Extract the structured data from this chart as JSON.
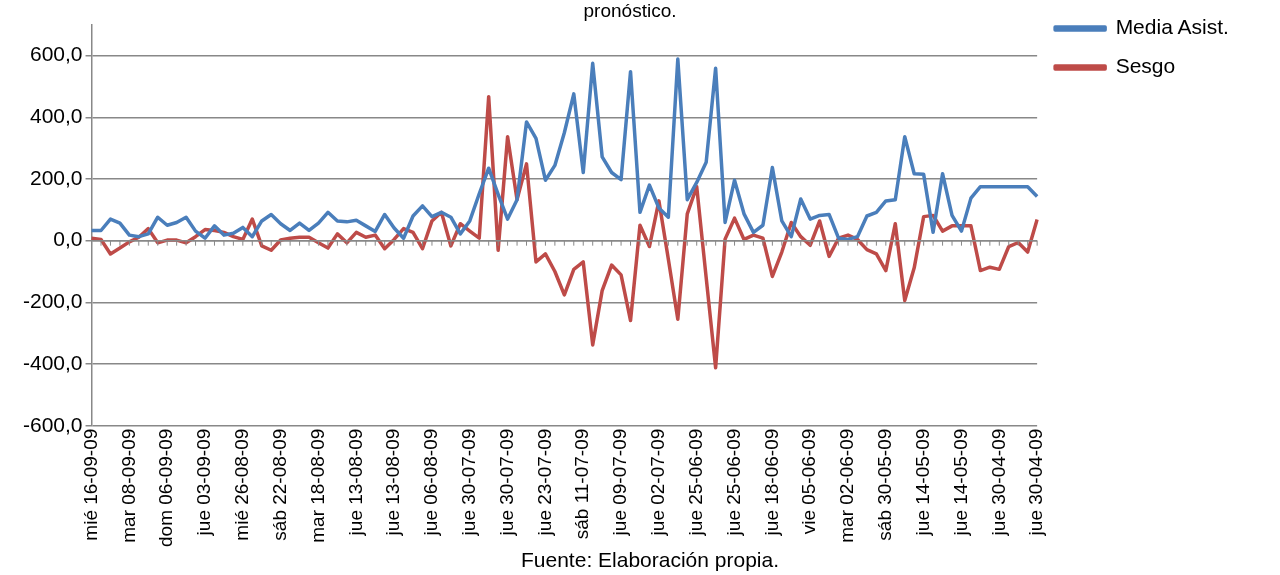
{
  "chart_data": {
    "type": "line",
    "title": "pronóstico.",
    "annotations": [
      "Fuente: Elaboración propia."
    ],
    "categories": [
      "mié 16-09-09",
      null,
      null,
      null,
      "mar 08-09-09",
      null,
      null,
      null,
      "dom 06-09-09",
      null,
      null,
      null,
      "jue 03-09-09",
      null,
      null,
      null,
      "mié 26-08-09",
      null,
      null,
      null,
      "sáb 22-08-09",
      null,
      null,
      null,
      "mar 18-08-09",
      null,
      null,
      null,
      "jue 13-08-09",
      null,
      null,
      null,
      "jue 13-08-09",
      null,
      null,
      null,
      "jue 06-08-09",
      null,
      null,
      null,
      "jue 30-07-09",
      null,
      null,
      null,
      "jue 30-07-09",
      null,
      null,
      null,
      "jue 23-07-09",
      null,
      null,
      null,
      "sáb 11-07-09",
      null,
      null,
      null,
      "jue 09-07-09",
      null,
      null,
      null,
      "jue 02-07-09",
      null,
      null,
      null,
      "jue 25-06-09",
      null,
      null,
      null,
      "jue 25-06-09",
      null,
      null,
      null,
      "jue 18-06-09",
      null,
      null,
      null,
      "vie 05-06-09",
      null,
      null,
      null,
      "mar 02-06-09",
      null,
      null,
      null,
      "sáb 30-05-09",
      null,
      null,
      null,
      "jue 14-05-09",
      null,
      null,
      null,
      "jue 14-05-09",
      null,
      null,
      null,
      "jue 30-04-09",
      null,
      null,
      null,
      "jue 30-04-09"
    ],
    "series": [
      {
        "name": "Media Asist.",
        "color": "#4a7ebb",
        "values": [
          33,
          33,
          70,
          57,
          18,
          13,
          22,
          76,
          50,
          59,
          76,
          31,
          8,
          48,
          18,
          24,
          43,
          13,
          64,
          85,
          55,
          33,
          57,
          33,
          57,
          92,
          64,
          61,
          66,
          48,
          30,
          85,
          41,
          8,
          80,
          113,
          78,
          92,
          76,
          22,
          64,
          152,
          235,
          150,
          70,
          133,
          385,
          332,
          196,
          244,
          350,
          476,
          221,
          575,
          272,
          221,
          198,
          548,
          92,
          180,
          106,
          76,
          589,
          133,
          189,
          254,
          559,
          59,
          196,
          87,
          27,
          50,
          237,
          64,
          13,
          135,
          70,
          82,
          85,
          8,
          4,
          13,
          80,
          92,
          129,
          133,
          337,
          217,
          215,
          27,
          217,
          82,
          31,
          138,
          175,
          175,
          175,
          175,
          175,
          175,
          143
        ]
      },
      {
        "name": "Sesgo",
        "color": "#be4b48",
        "values": [
          8,
          4,
          -43,
          -24,
          -4,
          11,
          39,
          -7,
          2,
          2,
          -7,
          13,
          36,
          33,
          27,
          13,
          4,
          70,
          -17,
          -31,
          2,
          8,
          11,
          11,
          -7,
          -24,
          22,
          -7,
          27,
          11,
          18,
          -26,
          4,
          39,
          27,
          -26,
          64,
          92,
          -17,
          55,
          31,
          8,
          467,
          -31,
          337,
          133,
          249,
          -69,
          -43,
          -100,
          -176,
          -93,
          -69,
          -338,
          -162,
          -79,
          -111,
          -259,
          50,
          -19,
          129,
          -60,
          -255,
          87,
          175,
          -120,
          -412,
          5,
          73,
          4,
          18,
          8,
          -116,
          -37,
          59,
          13,
          -15,
          64,
          -51,
          8,
          18,
          4,
          -29,
          -43,
          -97,
          55,
          -194,
          -88,
          78,
          82,
          31,
          48,
          48,
          48,
          -97,
          -86,
          -93,
          -19,
          -6,
          -37,
          69
        ]
      }
    ],
    "ylim": [
      -600,
      700
    ],
    "yticks": [
      {
        "value": -600,
        "label": "-600,0"
      },
      {
        "value": -400,
        "label": "-400,0"
      },
      {
        "value": -200,
        "label": "-200,0"
      },
      {
        "value": 0,
        "label": "0,0"
      },
      {
        "value": 200,
        "label": "200,0"
      },
      {
        "value": 400,
        "label": "400,0"
      },
      {
        "value": 600,
        "label": "600,0"
      }
    ],
    "grid": "y",
    "legend": "right",
    "marker": "none",
    "line_style": "solid"
  }
}
